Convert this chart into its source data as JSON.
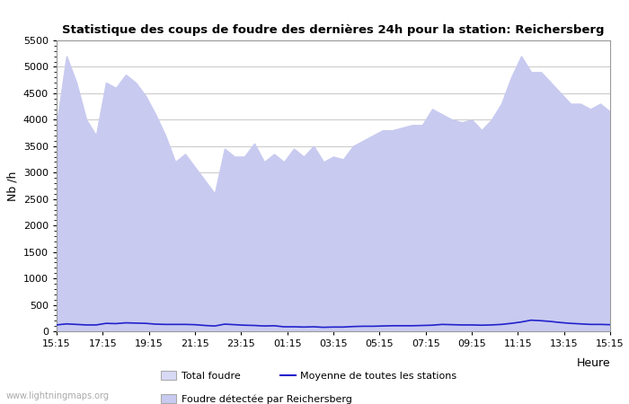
{
  "title": "Statistique des coups de foudre des dernières 24h pour la station: Reichersberg",
  "ylabel": "Nb /h",
  "watermark": "www.lightningmaps.org",
  "ylim": [
    0,
    5500
  ],
  "yticks": [
    0,
    500,
    1000,
    1500,
    2000,
    2500,
    3000,
    3500,
    4000,
    4500,
    5000,
    5500
  ],
  "xtick_labels": [
    "15:15",
    "17:15",
    "19:15",
    "21:15",
    "23:15",
    "01:15",
    "03:15",
    "05:15",
    "07:15",
    "09:15",
    "11:15",
    "13:15",
    "15:15"
  ],
  "legend_entries": [
    "Total foudre",
    "Moyenne de toutes les stations",
    "Foudre détectée par Reichersberg"
  ],
  "fill_total_color": "#d8daf5",
  "fill_reichersberg_color": "#c8caf0",
  "line_color": "#2222cc",
  "background_color": "#ffffff",
  "grid_color": "#cccccc",
  "total_foudre": [
    3900,
    5200,
    4700,
    4000,
    3700,
    4700,
    4600,
    4850,
    4700,
    4450,
    4100,
    3700,
    3200,
    3350,
    3100,
    2850,
    2600,
    3450,
    3300,
    3300,
    3550,
    3200,
    3350,
    3200,
    3450,
    3300,
    3500,
    3200,
    3300,
    3250,
    3500,
    3600,
    3700,
    3800,
    3800,
    3850,
    3900,
    3900,
    4200,
    4100,
    4000,
    3950,
    4000,
    3800,
    4000,
    4300,
    4800,
    5200,
    4900,
    4900,
    4700,
    4500,
    4300,
    4300,
    4200,
    4300,
    4150
  ],
  "reichersberg": [
    3900,
    5200,
    4700,
    4000,
    3700,
    4700,
    4600,
    4850,
    4700,
    4450,
    4100,
    3700,
    3200,
    3350,
    3100,
    2850,
    2600,
    3450,
    3300,
    3300,
    3550,
    3200,
    3350,
    3200,
    3450,
    3300,
    3500,
    3200,
    3300,
    3250,
    3500,
    3600,
    3700,
    3800,
    3800,
    3850,
    3900,
    3900,
    4200,
    4100,
    4000,
    3950,
    4000,
    3800,
    4000,
    4300,
    4800,
    5200,
    4900,
    4900,
    4700,
    4500,
    4300,
    4300,
    4200,
    4300,
    4150
  ],
  "moyenne": [
    120,
    140,
    130,
    120,
    120,
    150,
    145,
    160,
    155,
    150,
    135,
    130,
    130,
    130,
    125,
    110,
    100,
    135,
    125,
    115,
    110,
    100,
    105,
    85,
    85,
    80,
    85,
    75,
    80,
    80,
    90,
    95,
    95,
    100,
    105,
    105,
    105,
    110,
    115,
    130,
    125,
    120,
    120,
    115,
    120,
    130,
    150,
    175,
    210,
    200,
    185,
    165,
    150,
    140,
    130,
    130,
    125
  ],
  "n_points": 57
}
